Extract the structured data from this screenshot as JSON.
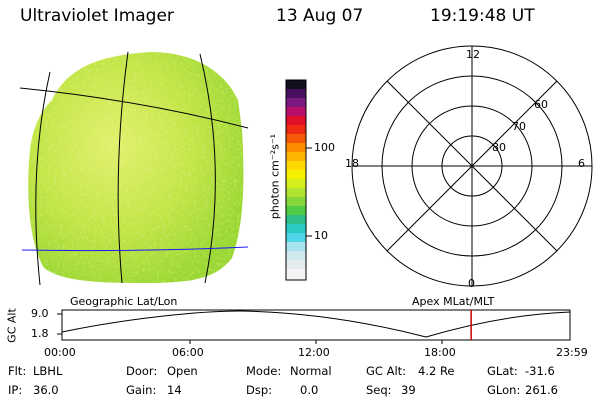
{
  "header": {
    "title": "Ultraviolet Imager",
    "date": "13 Aug 07",
    "time": "19:19:48 UT"
  },
  "colorbar": {
    "label": "photon cm⁻²s⁻¹",
    "ticks": [
      "100",
      "10"
    ]
  },
  "polar": {
    "mlt_labels": {
      "top": "12",
      "left": "18",
      "right": "6",
      "bottom": "0"
    },
    "lat_labels": [
      "60",
      "70",
      "80"
    ]
  },
  "panels": {
    "left_caption": "Geographic Lat/Lon",
    "right_caption": "Apex MLat/MLT"
  },
  "orbit": {
    "ylabel": "GC Alt",
    "y_ticks": [
      "9.0",
      "1.8"
    ],
    "x_ticks": [
      "00:00",
      "06:00",
      "12:00",
      "18:00",
      "23:59"
    ],
    "current_time_hours": 19.33,
    "line_color": "#000000",
    "marker_color": "#cc0000"
  },
  "status": {
    "flt_label": "Flt:",
    "flt_value": "LBHL",
    "ip_label": "IP:",
    "ip_value": "36.0",
    "door_label": "Door:",
    "door_value": "Open",
    "gain_label": "Gain:",
    "gain_value": "14",
    "mode_label": "Mode:",
    "mode_value": "Normal",
    "dsp_label": "Dsp:",
    "dsp_value": "0.0",
    "gcalt_label": "GC Alt:",
    "gcalt_value": "4.2 Re",
    "seq_label": "Seq:",
    "seq_value": "39",
    "glat_label": "GLat:",
    "glat_value": "-31.6",
    "glon_label": "GLon:",
    "glon_value": "261.6"
  },
  "colors": {
    "disk_base": "#b6e23a",
    "disk_light": "#d8ee6a",
    "grid_black": "#000000",
    "equator_blue": "#1a1aff"
  }
}
